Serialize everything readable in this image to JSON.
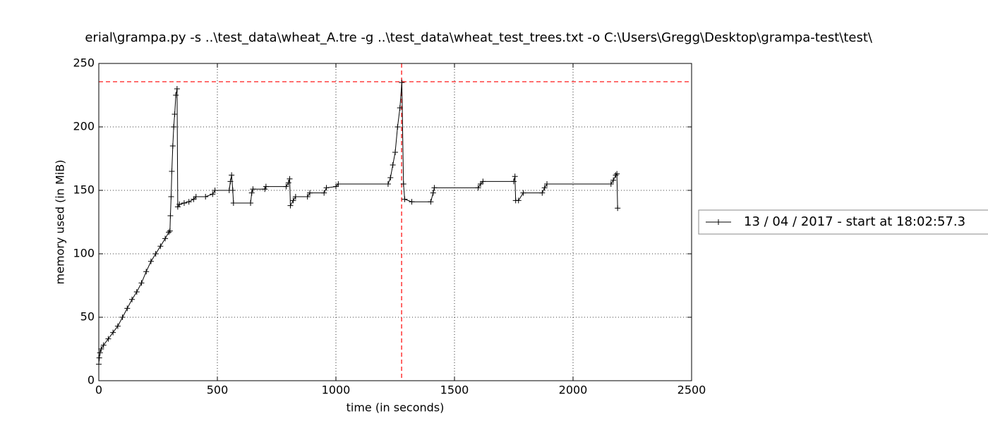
{
  "chart_data": {
    "type": "line",
    "title": "erial\\grampa.py -s ..\\test_data\\wheat_A.tre -g ..\\test_data\\wheat_test_trees.txt -o C:\\Users\\Gregg\\Desktop\\grampa-test\\test\\",
    "x_label": "time (in seconds)",
    "y_label": "memory used (in MiB)",
    "xlim": [
      0,
      2500
    ],
    "ylim": [
      0,
      250
    ],
    "xticks": [
      0,
      500,
      1000,
      1500,
      2000,
      2500
    ],
    "yticks": [
      0,
      50,
      100,
      150,
      200,
      250
    ],
    "grid": true,
    "legend": "right",
    "x": [
      0,
      2,
      5,
      10,
      20,
      40,
      60,
      80,
      100,
      120,
      140,
      160,
      180,
      200,
      220,
      240,
      260,
      280,
      295,
      300,
      302,
      305,
      308,
      312,
      316,
      320,
      325,
      330,
      333,
      340,
      360,
      380,
      400,
      410,
      450,
      480,
      490,
      550,
      555,
      560,
      565,
      568,
      640,
      645,
      650,
      700,
      705,
      790,
      800,
      805,
      808,
      820,
      830,
      880,
      890,
      950,
      960,
      1000,
      1010,
      1220,
      1230,
      1240,
      1250,
      1260,
      1270,
      1278,
      1285,
      1290,
      1320,
      1400,
      1410,
      1415,
      1600,
      1610,
      1620,
      1750,
      1755,
      1758,
      1770,
      1790,
      1870,
      1880,
      1890,
      2160,
      2170,
      2180,
      2185,
      2188
    ],
    "series": [
      {
        "name": "13 / 04 / 2017 - start at 18:02:57.3",
        "color": "#000000",
        "values": [
          13,
          18,
          22,
          25,
          28,
          33,
          38,
          43,
          50,
          57,
          64,
          70,
          77,
          86,
          94,
          100,
          106,
          112,
          117,
          118,
          130,
          145,
          165,
          185,
          200,
          210,
          225,
          230,
          137,
          139,
          140,
          141,
          143,
          145,
          145,
          147,
          150,
          150,
          157,
          162,
          150,
          140,
          140,
          148,
          151,
          151,
          153,
          153,
          156,
          159,
          138,
          142,
          145,
          145,
          148,
          148,
          152,
          153,
          155,
          155,
          160,
          170,
          180,
          200,
          215,
          235,
          155,
          143,
          141,
          141,
          148,
          152,
          152,
          155,
          157,
          157,
          161,
          142,
          142,
          148,
          148,
          152,
          155,
          155,
          158,
          162,
          163,
          136
        ]
      }
    ],
    "reference_lines": {
      "x": 1277,
      "y": 235.6,
      "color": "#ff0000"
    }
  }
}
